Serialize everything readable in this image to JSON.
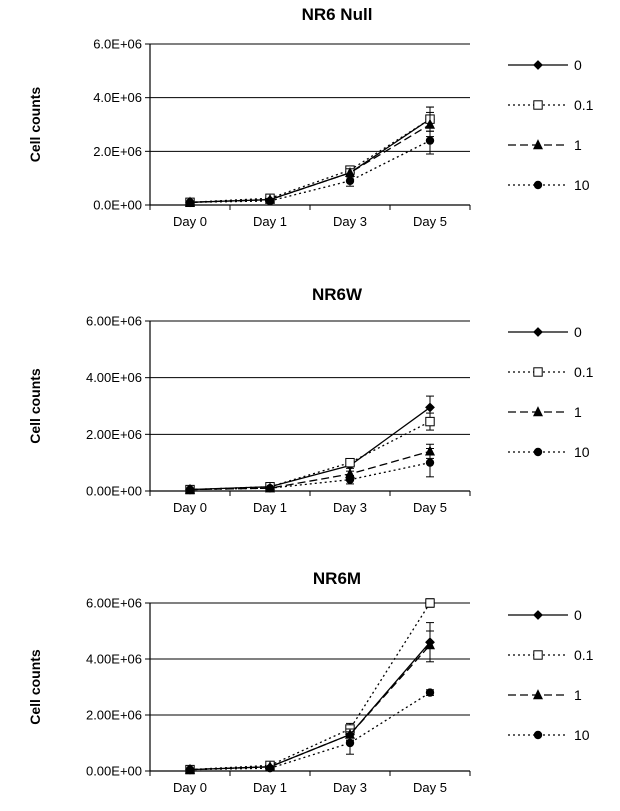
{
  "chart_data": [
    {
      "type": "line",
      "title": "NR6 Null",
      "xlabel": "",
      "ylabel": "Cell counts",
      "categories": [
        "Day 0",
        "Day 1",
        "Day 3",
        "Day 5"
      ],
      "y_tick_labels": [
        "0.0E+00",
        "2.0E+06",
        "4.0E+06",
        "6.0E+06"
      ],
      "ylim": [
        0,
        6000000
      ],
      "grid": "horizontal",
      "legend_position": "right",
      "series": [
        {
          "name": "0",
          "values": [
            100000,
            200000,
            1200000,
            3200000
          ],
          "errors": [
            30000,
            40000,
            150000,
            450000
          ]
        },
        {
          "name": "0.1",
          "values": [
            100000,
            250000,
            1300000,
            3200000
          ],
          "errors": [
            30000,
            40000,
            150000,
            450000
          ]
        },
        {
          "name": "1",
          "values": [
            100000,
            200000,
            1200000,
            3000000
          ],
          "errors": [
            30000,
            40000,
            150000,
            450000
          ]
        },
        {
          "name": "10",
          "values": [
            100000,
            150000,
            900000,
            2400000
          ],
          "errors": [
            30000,
            40000,
            200000,
            500000
          ]
        }
      ]
    },
    {
      "type": "line",
      "title": "NR6W",
      "xlabel": "",
      "ylabel": "Cell counts",
      "categories": [
        "Day 0",
        "Day 1",
        "Day 3",
        "Day 5"
      ],
      "y_tick_labels": [
        "0.00E+00",
        "2.00E+06",
        "4.00E+06",
        "6.00E+06"
      ],
      "ylim": [
        0,
        6000000
      ],
      "grid": "horizontal",
      "legend_position": "right",
      "series": [
        {
          "name": "0",
          "values": [
            50000,
            150000,
            900000,
            2950000
          ],
          "errors": [
            20000,
            30000,
            100000,
            400000
          ]
        },
        {
          "name": "0.1",
          "values": [
            50000,
            150000,
            1000000,
            2450000
          ],
          "errors": [
            20000,
            30000,
            100000,
            300000
          ]
        },
        {
          "name": "1",
          "values": [
            50000,
            100000,
            600000,
            1400000
          ],
          "errors": [
            20000,
            30000,
            100000,
            250000
          ]
        },
        {
          "name": "10",
          "values": [
            50000,
            100000,
            400000,
            1000000
          ],
          "errors": [
            20000,
            30000,
            150000,
            500000
          ]
        }
      ]
    },
    {
      "type": "line",
      "title": "NR6M",
      "xlabel": "",
      "ylabel": "Cell counts",
      "categories": [
        "Day 0",
        "Day 1",
        "Day 3",
        "Day 5"
      ],
      "y_tick_labels": [
        "0.00E+00",
        "2.00E+06",
        "4.00E+06",
        "6.00E+06"
      ],
      "ylim": [
        0,
        6000000
      ],
      "grid": "horizontal",
      "legend_position": "right",
      "series": [
        {
          "name": "0",
          "values": [
            50000,
            150000,
            1300000,
            4600000
          ],
          "errors": [
            20000,
            30000,
            200000,
            700000
          ]
        },
        {
          "name": "0.1",
          "values": [
            50000,
            200000,
            1500000,
            6000000
          ],
          "errors": [
            20000,
            30000,
            200000,
            150000
          ]
        },
        {
          "name": "1",
          "values": [
            50000,
            150000,
            1300000,
            4500000
          ],
          "errors": [
            20000,
            30000,
            200000,
            500000
          ]
        },
        {
          "name": "10",
          "values": [
            50000,
            100000,
            1000000,
            2800000
          ],
          "errors": [
            20000,
            30000,
            400000,
            100000
          ]
        }
      ]
    }
  ]
}
